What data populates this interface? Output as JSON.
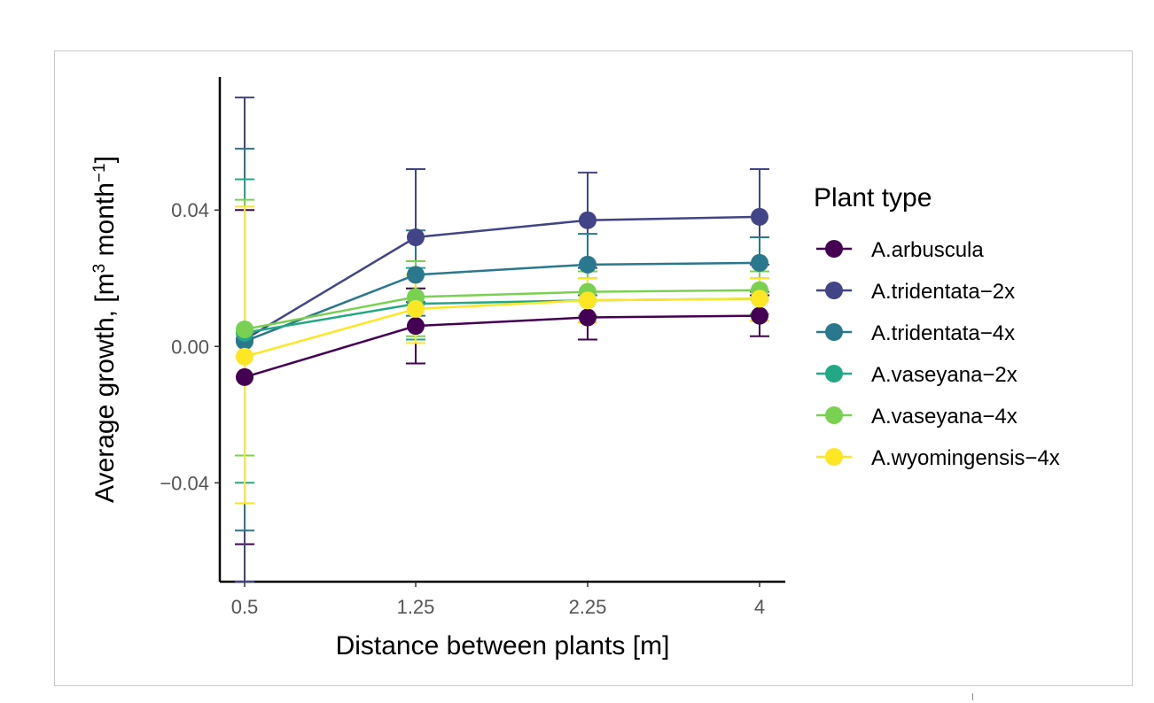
{
  "chart_data": {
    "type": "line",
    "x": [
      0.5,
      1.25,
      2.25,
      4
    ],
    "categories": [
      "0.5",
      "1.25",
      "2.25",
      "4"
    ],
    "xlabel": "Distance between plants [m]",
    "ylabel": {
      "prefix": "Average growth, [m",
      "sup1": "3",
      "middle": " month",
      "sup2": "−1",
      "suffix": "]"
    },
    "ylim": [
      -0.069,
      0.079
    ],
    "yticks": [
      {
        "value": -0.04,
        "label": "−0.04"
      },
      {
        "value": 0.0,
        "label": "0.00"
      },
      {
        "value": 0.04,
        "label": "0.04"
      }
    ],
    "grid": false,
    "legend_title": "Plant type",
    "legend_position": "right",
    "series": [
      {
        "name": "A.arbuscula",
        "color": "#440154",
        "values": [
          -0.009,
          0.006,
          0.0085,
          0.009
        ],
        "err_low": [
          -0.058,
          -0.005,
          0.002,
          0.003
        ],
        "err_high": [
          0.04,
          0.017,
          0.015,
          0.015
        ]
      },
      {
        "name": "A.tridentata−2x",
        "color": "#414487",
        "values": [
          0.002,
          0.032,
          0.037,
          0.038
        ],
        "err_low": [
          -0.069,
          0.013,
          0.023,
          0.024
        ],
        "err_high": [
          0.073,
          0.052,
          0.051,
          0.052
        ]
      },
      {
        "name": "A.tridentata−4x",
        "color": "#2A788E",
        "values": [
          0.0015,
          0.021,
          0.024,
          0.0245
        ],
        "err_low": [
          -0.054,
          0.009,
          0.015,
          0.016
        ],
        "err_high": [
          0.058,
          0.034,
          0.033,
          0.032
        ]
      },
      {
        "name": "A.vaseyana−2x",
        "color": "#22A884",
        "values": [
          0.004,
          0.0125,
          0.0135,
          0.014
        ],
        "err_low": [
          -0.04,
          0.002,
          0.007,
          0.0075
        ],
        "err_high": [
          0.049,
          0.023,
          0.02,
          0.02
        ]
      },
      {
        "name": "A.vaseyana−4x",
        "color": "#7AD151",
        "values": [
          0.005,
          0.0145,
          0.016,
          0.0165
        ],
        "err_low": [
          -0.032,
          0.003,
          0.009,
          0.0095
        ],
        "err_high": [
          0.043,
          0.025,
          0.022,
          0.022
        ]
      },
      {
        "name": "A.wyomingensis−4x",
        "color": "#FDE725",
        "values": [
          -0.003,
          0.011,
          0.0135,
          0.014
        ],
        "err_low": [
          -0.046,
          0.001,
          0.007,
          0.0075
        ],
        "err_high": [
          0.041,
          0.021,
          0.02,
          0.02
        ]
      }
    ]
  }
}
